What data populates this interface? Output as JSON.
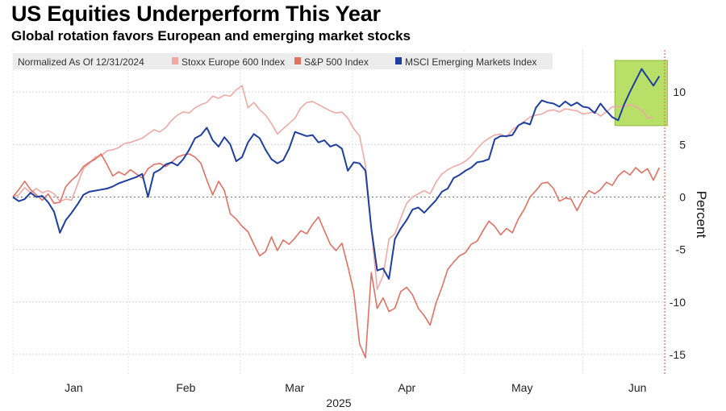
{
  "title": "US Equities Underperform This Year",
  "subtitle": "Global rotation favors European and emerging market stocks",
  "chart_data": {
    "type": "line",
    "legend_note": "Normalized As Of 12/31/2024",
    "legend_position": "top-left",
    "ylabel": "Percent",
    "xlabel": "2025",
    "x_ticks": [
      "Jan",
      "Feb",
      "Mar",
      "Apr",
      "May",
      "Jun"
    ],
    "y_ticks": [
      10,
      5,
      0,
      -5,
      -10,
      -15
    ],
    "ylim": [
      -17,
      14
    ],
    "grid": true,
    "highlight": {
      "from_index": 103,
      "to_index": 110,
      "color": "#b8e069"
    },
    "series": [
      {
        "name": "Stoxx Europe 600 Index",
        "color": "#eea9a5",
        "values": [
          0.0,
          0.2,
          0.9,
          0.4,
          0.8,
          0.4,
          0.6,
          0.3,
          -0.4,
          -0.2,
          -0.3,
          1.2,
          2.7,
          3.2,
          3.8,
          3.9,
          4.4,
          4.5,
          4.7,
          5.1,
          5.2,
          5.4,
          5.6,
          6.0,
          6.4,
          6.2,
          6.6,
          7.3,
          7.8,
          8.1,
          8.0,
          8.5,
          8.8,
          9.0,
          9.6,
          9.4,
          9.7,
          9.6,
          10.2,
          10.6,
          8.5,
          9.0,
          8.3,
          7.8,
          7.0,
          6.0,
          6.5,
          7.0,
          7.5,
          8.5,
          9.0,
          9.1,
          8.8,
          8.5,
          8.2,
          8.0,
          8.1,
          7.5,
          6.5,
          5.8,
          3.0,
          -3.0,
          -8.8,
          -7.5,
          -4.0,
          -3.5,
          -2.0,
          -0.6,
          0.0,
          0.3,
          0.6,
          0.3,
          1.4,
          2.2,
          2.6,
          2.9,
          3.1,
          3.4,
          3.9,
          4.6,
          5.2,
          5.6,
          5.9,
          6.0,
          5.7,
          6.4,
          6.8,
          7.2,
          7.6,
          7.8,
          7.9,
          8.2,
          8.3,
          8.1,
          8.4,
          8.3,
          8.2,
          7.9,
          8.0,
          8.1,
          7.7,
          8.1,
          8.6,
          8.6,
          8.6,
          8.8,
          8.6,
          8.3,
          7.5,
          7.6
        ]
      },
      {
        "name": "S&P 500 Index",
        "color": "#e07163",
        "values": [
          0.0,
          0.7,
          1.5,
          0.7,
          0.2,
          -0.3,
          0.3,
          -0.6,
          -0.5,
          1.0,
          1.6,
          2.1,
          2.9,
          3.3,
          3.6,
          4.1,
          3.1,
          2.0,
          2.4,
          2.1,
          2.6,
          2.2,
          1.8,
          2.7,
          3.1,
          3.2,
          2.9,
          3.3,
          3.8,
          4.0,
          4.1,
          3.8,
          3.2,
          1.6,
          0.2,
          1.5,
          0.6,
          -1.6,
          -2.1,
          -2.8,
          -3.3,
          -4.5,
          -5.6,
          -5.2,
          -3.8,
          -5.1,
          -4.1,
          -4.5,
          -3.9,
          -3.2,
          -3.5,
          -2.6,
          -1.9,
          -3.2,
          -4.5,
          -5.1,
          -4.4,
          -6.6,
          -9.0,
          -14.0,
          -15.3,
          -7.2,
          -10.6,
          -9.6,
          -10.9,
          -10.6,
          -9.0,
          -8.6,
          -9.3,
          -10.6,
          -11.3,
          -12.2,
          -10.1,
          -8.6,
          -6.9,
          -6.2,
          -5.6,
          -5.3,
          -4.5,
          -4.2,
          -3.2,
          -2.3,
          -2.8,
          -3.6,
          -3.0,
          -3.4,
          -2.1,
          -1.2,
          0.0,
          0.6,
          1.3,
          1.4,
          0.8,
          -0.4,
          -0.1,
          -0.2,
          -1.3,
          -0.2,
          0.6,
          0.3,
          0.7,
          1.4,
          1.1,
          2.0,
          2.5,
          2.1,
          2.8,
          2.3,
          2.7,
          1.6,
          2.8
        ]
      },
      {
        "name": "MSCI Emerging Markets Index",
        "color": "#1f3fa0",
        "values": [
          0.0,
          -0.4,
          -0.2,
          0.4,
          0.0,
          0.1,
          -0.5,
          -1.4,
          -3.4,
          -2.2,
          -1.5,
          -0.7,
          0.2,
          0.5,
          0.6,
          0.7,
          0.8,
          1.0,
          1.3,
          1.5,
          1.7,
          1.9,
          2.2,
          0.0,
          2.3,
          2.6,
          3.1,
          3.3,
          3.0,
          3.6,
          4.5,
          5.6,
          5.9,
          6.6,
          5.4,
          4.8,
          5.7,
          5.0,
          3.4,
          3.8,
          5.2,
          6.0,
          5.6,
          4.5,
          3.6,
          3.2,
          3.5,
          4.6,
          6.2,
          6.0,
          5.8,
          5.9,
          5.2,
          5.4,
          4.8,
          5.0,
          4.6,
          2.5,
          3.3,
          3.2,
          2.5,
          -3.0,
          -7.0,
          -6.8,
          -7.8,
          -4.0,
          -3.0,
          -2.2,
          -1.2,
          -1.0,
          -1.5,
          -0.9,
          -0.3,
          0.5,
          0.8,
          1.8,
          2.1,
          2.5,
          2.8,
          3.3,
          3.4,
          3.6,
          5.5,
          5.8,
          5.8,
          5.9,
          6.8,
          7.1,
          6.9,
          8.5,
          9.2,
          9.0,
          8.9,
          8.6,
          9.1,
          8.7,
          9.0,
          8.6,
          8.5,
          8.0,
          8.9,
          8.2,
          7.6,
          7.3,
          8.8,
          10.0,
          11.1,
          12.2,
          11.4,
          10.6,
          11.5
        ]
      }
    ]
  }
}
